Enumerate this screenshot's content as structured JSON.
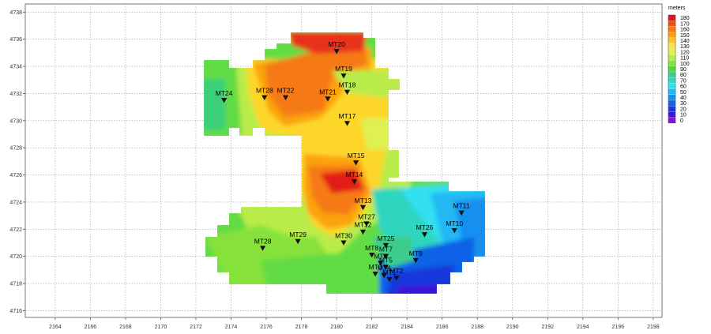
{
  "chart_data": {
    "type": "heatmap",
    "colorbar_title": "meters",
    "x_ticks": [
      2164,
      2166,
      2168,
      2170,
      2172,
      2174,
      2176,
      2178,
      2180,
      2182,
      2184,
      2186,
      2188,
      2190,
      2192,
      2194,
      2196,
      2198
    ],
    "y_ticks": [
      4716,
      4718,
      4720,
      4722,
      4724,
      4726,
      4728,
      4730,
      4732,
      4734,
      4736,
      4738
    ],
    "xlim": [
      2162.3,
      2198.5
    ],
    "ylim": [
      4715.5,
      4738.6
    ],
    "grid": true,
    "colorbar_levels": [
      180,
      170,
      160,
      150,
      140,
      130,
      120,
      110,
      100,
      90,
      80,
      70,
      60,
      50,
      40,
      30,
      20,
      10,
      0
    ],
    "colorbar_colors": [
      "#e0141c",
      "#ef4b14",
      "#f7780e",
      "#fca30a",
      "#fdc42a",
      "#f5e548",
      "#dff052",
      "#b4ec48",
      "#86e23a",
      "#55d440",
      "#3ccd8a",
      "#2ed6c0",
      "#30e0f0",
      "#22b8f4",
      "#1490f0",
      "#1062e6",
      "#1438dc",
      "#3a16d8",
      "#8a10d4"
    ],
    "stations": [
      {
        "name": "MT20",
        "x": 2180.0,
        "y": 4735.1
      },
      {
        "name": "MT19",
        "x": 2180.4,
        "y": 4733.3
      },
      {
        "name": "MT18",
        "x": 2180.6,
        "y": 4732.1
      },
      {
        "name": "MT24",
        "x": 2173.6,
        "y": 4731.5
      },
      {
        "name": "MT28",
        "x": 2175.9,
        "y": 4731.7
      },
      {
        "name": "MT22",
        "x": 2177.1,
        "y": 4731.7
      },
      {
        "name": "MT21",
        "x": 2179.5,
        "y": 4731.6
      },
      {
        "name": "MT17",
        "x": 2180.6,
        "y": 4729.8
      },
      {
        "name": "MT15",
        "x": 2181.1,
        "y": 4726.9
      },
      {
        "name": "MT14",
        "x": 2181.0,
        "y": 4725.5
      },
      {
        "name": "MT13",
        "x": 2181.5,
        "y": 4723.6
      },
      {
        "name": "MT11",
        "x": 2187.1,
        "y": 4723.2
      },
      {
        "name": "MT27",
        "x": 2181.7,
        "y": 4722.4
      },
      {
        "name": "MT12",
        "x": 2181.5,
        "y": 4721.8
      },
      {
        "name": "MT10",
        "x": 2186.7,
        "y": 4721.9
      },
      {
        "name": "MT26",
        "x": 2185.0,
        "y": 4721.6
      },
      {
        "name": "MT29",
        "x": 2177.8,
        "y": 4721.1
      },
      {
        "name": "MT30",
        "x": 2180.4,
        "y": 4721.0
      },
      {
        "name": "MT25",
        "x": 2182.8,
        "y": 4720.8
      },
      {
        "name": "MT28",
        "x": 2175.8,
        "y": 4720.6
      },
      {
        "name": "MT8",
        "x": 2182.0,
        "y": 4720.1
      },
      {
        "name": "MT7",
        "x": 2182.8,
        "y": 4720.0
      },
      {
        "name": "MT9",
        "x": 2184.5,
        "y": 4719.7
      },
      {
        "name": "MT6",
        "x": 2182.5,
        "y": 4719.5
      },
      {
        "name": "MT5",
        "x": 2182.8,
        "y": 4719.2
      },
      {
        "name": "MT3",
        "x": 2182.2,
        "y": 4718.7
      },
      {
        "name": "MT4",
        "x": 2182.7,
        "y": 4718.6
      },
      {
        "name": "MT1",
        "x": 2183.0,
        "y": 4718.3
      },
      {
        "name": "MT2",
        "x": 2183.4,
        "y": 4718.4
      }
    ]
  }
}
